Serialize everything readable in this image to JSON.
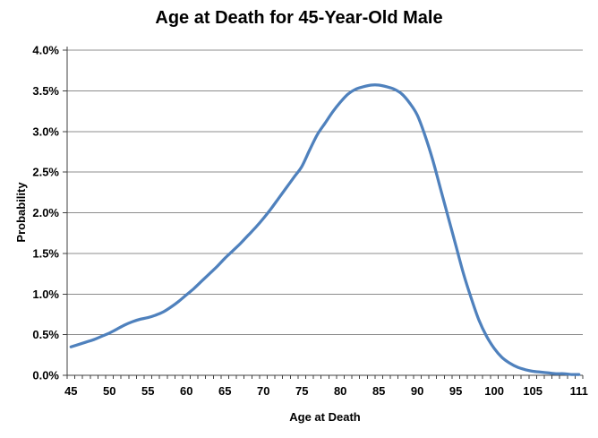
{
  "chart_data": {
    "type": "line",
    "title": "Age at Death for 45-Year-Old Male",
    "xlabel": "Age at Death",
    "ylabel": "Probability",
    "xlim": [
      45,
      111
    ],
    "ylim": [
      0,
      4
    ],
    "grid": "horizontal",
    "legend": "none",
    "unit": "%",
    "x": [
      45,
      46,
      47,
      48,
      49,
      50,
      51,
      52,
      53,
      54,
      55,
      56,
      57,
      58,
      59,
      60,
      61,
      62,
      63,
      64,
      65,
      66,
      67,
      68,
      69,
      70,
      71,
      72,
      73,
      74,
      75,
      76,
      77,
      78,
      79,
      80,
      81,
      82,
      83,
      84,
      85,
      86,
      87,
      88,
      89,
      90,
      91,
      92,
      93,
      94,
      95,
      96,
      97,
      98,
      99,
      100,
      101,
      102,
      103,
      104,
      105,
      106,
      107,
      108,
      109,
      110,
      111
    ],
    "values": [
      0.35,
      0.38,
      0.41,
      0.44,
      0.48,
      0.52,
      0.57,
      0.62,
      0.66,
      0.69,
      0.71,
      0.74,
      0.78,
      0.84,
      0.91,
      0.99,
      1.07,
      1.16,
      1.25,
      1.34,
      1.44,
      1.53,
      1.62,
      1.72,
      1.82,
      1.93,
      2.05,
      2.18,
      2.31,
      2.44,
      2.57,
      2.77,
      2.96,
      3.1,
      3.24,
      3.36,
      3.46,
      3.52,
      3.55,
      3.57,
      3.57,
      3.55,
      3.52,
      3.46,
      3.35,
      3.2,
      2.95,
      2.65,
      2.3,
      1.95,
      1.6,
      1.25,
      0.95,
      0.68,
      0.48,
      0.33,
      0.22,
      0.15,
      0.1,
      0.07,
      0.05,
      0.04,
      0.03,
      0.02,
      0.02,
      0.01,
      0.01
    ],
    "xtick_values": [
      45,
      50,
      55,
      60,
      65,
      70,
      75,
      80,
      85,
      90,
      95,
      100,
      105,
      111
    ],
    "xtick_labels": [
      "45",
      "50",
      "55",
      "60",
      "65",
      "70",
      "75",
      "80",
      "85",
      "90",
      "95",
      "100",
      "105",
      "111"
    ],
    "ytick_values": [
      0,
      0.5,
      1,
      1.5,
      2,
      2.5,
      3,
      3.5,
      4
    ],
    "ytick_labels": [
      "0.0%",
      "0.5%",
      "1.0%",
      "1.5%",
      "2.0%",
      "2.5%",
      "3.0%",
      "3.5%",
      "4.0%"
    ],
    "colors": {
      "line": "#4F81BD",
      "gridline": "#8C8C8C",
      "axis": "#404040",
      "text": "#000000",
      "background": "#FFFFFF"
    }
  }
}
